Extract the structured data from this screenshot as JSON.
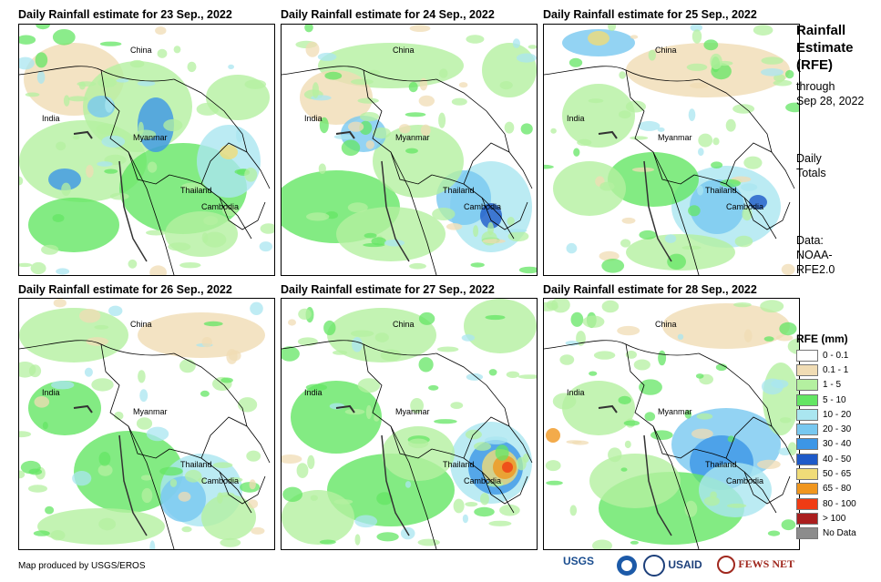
{
  "panels": [
    {
      "title": "Daily Rainfall estimate for 23 Sep., 2022"
    },
    {
      "title": "Daily Rainfall estimate for 24 Sep., 2022"
    },
    {
      "title": "Daily Rainfall estimate for 25 Sep., 2022"
    },
    {
      "title": "Daily Rainfall estimate for 26 Sep., 2022"
    },
    {
      "title": "Daily Rainfall estimate for 27 Sep., 2022"
    },
    {
      "title": "Daily Rainfall estimate for 28 Sep., 2022"
    }
  ],
  "map_labels": {
    "china": "China",
    "india": "India",
    "myanmar": "Myanmar",
    "thailand": "Thailand",
    "cambodia": "Cambodia"
  },
  "side": {
    "title_line1": "Rainfall",
    "title_line2": "Estimate",
    "title_line3": "(RFE)",
    "through": "through",
    "through_date": "Sep 28, 2022",
    "daily": "Daily",
    "totals": "Totals",
    "data_label": "Data:",
    "data_src1": "NOAA-",
    "data_src2": "RFE2.0"
  },
  "legend": {
    "title": "RFE (mm)",
    "items": [
      {
        "label": "0 - 0.1",
        "color": "#ffffff"
      },
      {
        "label": "0.1 - 1",
        "color": "#f0dcb4"
      },
      {
        "label": "1 - 5",
        "color": "#b4f0a0"
      },
      {
        "label": "5 - 10",
        "color": "#64e664"
      },
      {
        "label": "10 - 20",
        "color": "#aae6f0"
      },
      {
        "label": "20 - 30",
        "color": "#78c8f0"
      },
      {
        "label": "30 - 40",
        "color": "#3c96e6"
      },
      {
        "label": "40 - 50",
        "color": "#1e5ac8"
      },
      {
        "label": "50 - 65",
        "color": "#f0dc78"
      },
      {
        "label": "65 - 80",
        "color": "#f0961e"
      },
      {
        "label": "80 - 100",
        "color": "#f03c14"
      },
      {
        "label": "> 100",
        "color": "#aa1e1e"
      },
      {
        "label": "No Data",
        "color": "#8c8c8c"
      }
    ]
  },
  "footer": {
    "credit": "Map produced by USGS/EROS",
    "logo_usgs": "USGS",
    "logo_usaid": "USAID",
    "logo_fews": "FEWS NET"
  }
}
